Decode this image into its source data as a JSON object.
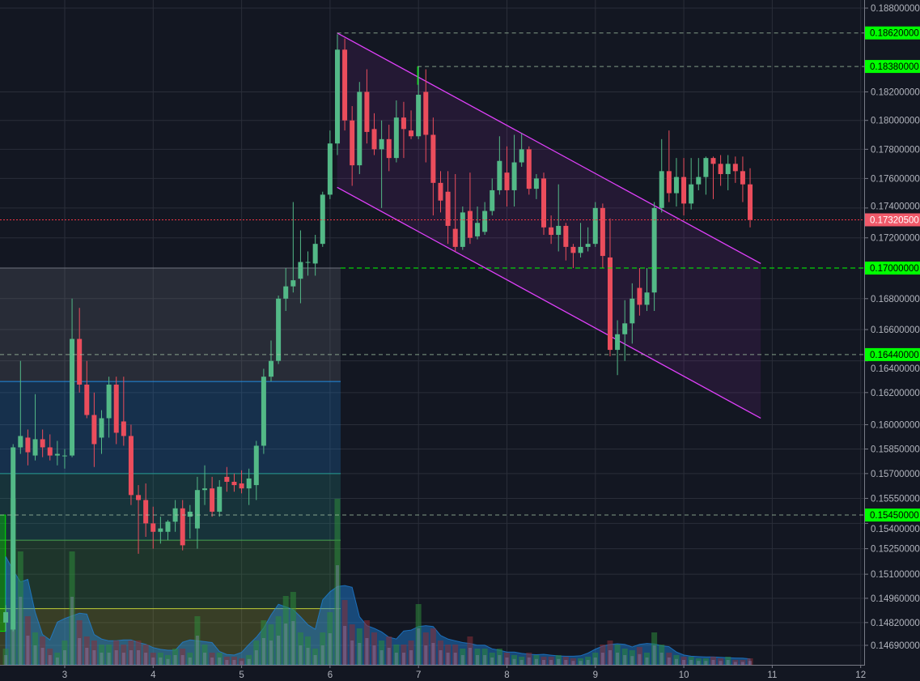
{
  "chart_data": {
    "type": "candlestick",
    "interval_hours": 2,
    "first_candle_day": 2.333,
    "colors": {
      "background": "#131722",
      "grid": "#2a2e39",
      "up": "#53b987",
      "down": "#eb4d5c",
      "channel": "#e040fb",
      "level_green": "#00ff00",
      "current_price": "#f05a6a",
      "volume_area": "#1e88e5"
    },
    "x_axis": {
      "tick_days": [
        3,
        4,
        5,
        6,
        7,
        8,
        9,
        10,
        11,
        12
      ],
      "ticks": [
        "3",
        "4",
        "5",
        "6",
        "7",
        "8",
        "9",
        "10",
        "11",
        "12"
      ]
    },
    "y_axis": {
      "scale": "log",
      "side": "right",
      "ticks": [
        "0.18800000",
        "0.18200000",
        "0.18000000",
        "0.17800000",
        "0.17600000",
        "0.17400000",
        "0.17200000",
        "0.16800000",
        "0.16600000",
        "0.16400000",
        "0.16200000",
        "0.16000000",
        "0.15850000",
        "0.15700000",
        "0.15550000",
        "0.15400000",
        "0.15250000",
        "0.15100000",
        "0.14960000",
        "0.14820000",
        "0.14690000"
      ]
    },
    "candles": [
      [
        0.1482,
        0.1492,
        0.1477,
        0.1488
      ],
      [
        0.1478,
        0.1588,
        0.1477,
        0.1586
      ],
      [
        0.1586,
        0.164,
        0.1582,
        0.1593
      ],
      [
        0.1592,
        0.1597,
        0.1575,
        0.1583
      ],
      [
        0.1581,
        0.1619,
        0.1578,
        0.1591
      ],
      [
        0.1591,
        0.1597,
        0.158,
        0.1586
      ],
      [
        0.1586,
        0.1594,
        0.1578,
        0.1581
      ],
      [
        0.1581,
        0.159,
        0.1575,
        0.1582
      ],
      [
        0.1581,
        0.1585,
        0.1573,
        0.1581
      ],
      [
        0.1581,
        0.168,
        0.158,
        0.1654
      ],
      [
        0.1654,
        0.1674,
        0.162,
        0.1625
      ],
      [
        0.1625,
        0.164,
        0.1604,
        0.1606
      ],
      [
        0.1606,
        0.162,
        0.1574,
        0.1588
      ],
      [
        0.1592,
        0.1609,
        0.1582,
        0.1604
      ],
      [
        0.1604,
        0.163,
        0.1592,
        0.1625
      ],
      [
        0.1625,
        0.163,
        0.1588,
        0.1595
      ],
      [
        0.1602,
        0.163,
        0.1587,
        0.1593
      ],
      [
        0.1593,
        0.16,
        0.1551,
        0.1557
      ],
      [
        0.1557,
        0.1563,
        0.1522,
        0.1554
      ],
      [
        0.1554,
        0.1564,
        0.1532,
        0.154
      ],
      [
        0.154,
        0.155,
        0.1525,
        0.1535
      ],
      [
        0.1535,
        0.1544,
        0.1528,
        0.1537
      ],
      [
        0.1535,
        0.1542,
        0.153,
        0.1541
      ],
      [
        0.1541,
        0.1554,
        0.1535,
        0.1549
      ],
      [
        0.1549,
        0.1554,
        0.1524,
        0.1527
      ],
      [
        0.1544,
        0.1551,
        0.1531,
        0.1547
      ],
      [
        0.1537,
        0.1568,
        0.1525,
        0.156
      ],
      [
        0.156,
        0.1575,
        0.1551,
        0.1561
      ],
      [
        0.1561,
        0.1568,
        0.1544,
        0.1547
      ],
      [
        0.1547,
        0.1566,
        0.1544,
        0.1562
      ],
      [
        0.1568,
        0.1574,
        0.1559,
        0.1565
      ],
      [
        0.1565,
        0.157,
        0.1559,
        0.1563
      ],
      [
        0.1564,
        0.1572,
        0.1558,
        0.1561
      ],
      [
        0.1561,
        0.1573,
        0.1551,
        0.1567
      ],
      [
        0.1563,
        0.159,
        0.1554,
        0.1587
      ],
      [
        0.1587,
        0.1635,
        0.1582,
        0.163
      ],
      [
        0.163,
        0.1653,
        0.1627,
        0.164
      ],
      [
        0.164,
        0.1682,
        0.1638,
        0.168
      ],
      [
        0.168,
        0.17,
        0.1672,
        0.1688
      ],
      [
        0.1688,
        0.1744,
        0.1684,
        0.1692
      ],
      [
        0.1693,
        0.1725,
        0.1677,
        0.1704
      ],
      [
        0.1704,
        0.1711,
        0.1695,
        0.1704
      ],
      [
        0.1703,
        0.1722,
        0.1695,
        0.1716
      ],
      [
        0.1716,
        0.1751,
        0.1714,
        0.1749
      ],
      [
        0.1749,
        0.1793,
        0.1746,
        0.1784
      ],
      [
        0.1784,
        0.1861,
        0.1776,
        0.185
      ],
      [
        0.185,
        0.1858,
        0.1793,
        0.18
      ],
      [
        0.18,
        0.181,
        0.1755,
        0.1769
      ],
      [
        0.1769,
        0.1827,
        0.1763,
        0.182
      ],
      [
        0.182,
        0.1836,
        0.1784,
        0.1792
      ],
      [
        0.1794,
        0.1805,
        0.1776,
        0.178
      ],
      [
        0.178,
        0.18,
        0.174,
        0.1787
      ],
      [
        0.1787,
        0.1797,
        0.1765,
        0.1774
      ],
      [
        0.1774,
        0.1814,
        0.1771,
        0.1802
      ],
      [
        0.1802,
        0.1813,
        0.1774,
        0.1794
      ],
      [
        0.1793,
        0.1807,
        0.1787,
        0.1789
      ],
      [
        0.1789,
        0.1838,
        0.1787,
        0.1818
      ],
      [
        0.182,
        0.1836,
        0.1771,
        0.179
      ],
      [
        0.179,
        0.1802,
        0.1735,
        0.1757
      ],
      [
        0.1757,
        0.1765,
        0.1737,
        0.1745
      ],
      [
        0.1751,
        0.1765,
        0.1716,
        0.1728
      ],
      [
        0.1726,
        0.1763,
        0.1711,
        0.1714
      ],
      [
        0.1714,
        0.1741,
        0.1712,
        0.1737
      ],
      [
        0.1738,
        0.1764,
        0.1716,
        0.172
      ],
      [
        0.1721,
        0.1741,
        0.1719,
        0.173
      ],
      [
        0.1724,
        0.1744,
        0.1722,
        0.1738
      ],
      [
        0.1738,
        0.176,
        0.1735,
        0.1752
      ],
      [
        0.1752,
        0.1789,
        0.1749,
        0.1772
      ],
      [
        0.1764,
        0.1782,
        0.1741,
        0.1752
      ],
      [
        0.1752,
        0.179,
        0.1741,
        0.1771
      ],
      [
        0.1771,
        0.1791,
        0.1768,
        0.178
      ],
      [
        0.178,
        0.1782,
        0.1749,
        0.1753
      ],
      [
        0.1753,
        0.1763,
        0.1746,
        0.176
      ],
      [
        0.176,
        0.1764,
        0.1722,
        0.1727
      ],
      [
        0.1727,
        0.1735,
        0.1716,
        0.1722
      ],
      [
        0.1722,
        0.1756,
        0.1711,
        0.1728
      ],
      [
        0.1728,
        0.173,
        0.1705,
        0.1714
      ],
      [
        0.1714,
        0.1716,
        0.17,
        0.171
      ],
      [
        0.171,
        0.173,
        0.1707,
        0.1714
      ],
      [
        0.1714,
        0.1727,
        0.1711,
        0.1716
      ],
      [
        0.1716,
        0.1744,
        0.1714,
        0.174
      ],
      [
        0.174,
        0.1743,
        0.17,
        0.1708
      ],
      [
        0.1707,
        0.1733,
        0.1643,
        0.1647
      ],
      [
        0.1647,
        0.1666,
        0.1631,
        0.1657
      ],
      [
        0.1657,
        0.1679,
        0.164,
        0.1664
      ],
      [
        0.1664,
        0.169,
        0.1651,
        0.168
      ],
      [
        0.1687,
        0.17,
        0.1669,
        0.1676
      ],
      [
        0.1676,
        0.17,
        0.1672,
        0.1684
      ],
      [
        0.1684,
        0.1744,
        0.1672,
        0.174
      ],
      [
        0.174,
        0.1787,
        0.1737,
        0.1765
      ],
      [
        0.1765,
        0.1793,
        0.1744,
        0.175
      ],
      [
        0.175,
        0.1774,
        0.1741,
        0.1761
      ],
      [
        0.1761,
        0.1774,
        0.1735,
        0.1743
      ],
      [
        0.1743,
        0.1774,
        0.1739,
        0.1756
      ],
      [
        0.1756,
        0.1774,
        0.1752,
        0.1761
      ],
      [
        0.1761,
        0.1775,
        0.1749,
        0.1774
      ],
      [
        0.1774,
        0.1775,
        0.1746,
        0.177
      ],
      [
        0.177,
        0.1776,
        0.1755,
        0.1763
      ],
      [
        0.1763,
        0.1776,
        0.1752,
        0.177
      ],
      [
        0.177,
        0.1775,
        0.1757,
        0.1765
      ],
      [
        0.1765,
        0.1775,
        0.1744,
        0.1756
      ],
      [
        0.1756,
        0.1767,
        0.1727,
        0.173205
      ]
    ],
    "volume": [
      20,
      205,
      140,
      60,
      40,
      35,
      20,
      15,
      30,
      140,
      55,
      35,
      30,
      25,
      25,
      30,
      25,
      30,
      30,
      25,
      15,
      15,
      12,
      20,
      20,
      15,
      60,
      25,
      15,
      15,
      10,
      10,
      8,
      12,
      30,
      55,
      50,
      60,
      85,
      90,
      40,
      35,
      20,
      40,
      65,
      205,
      80,
      50,
      45,
      55,
      40,
      30,
      35,
      25,
      25,
      30,
      75,
      40,
      45,
      30,
      25,
      25,
      20,
      35,
      20,
      20,
      15,
      20,
      15,
      12,
      10,
      15,
      12,
      10,
      10,
      12,
      10,
      8,
      8,
      10,
      15,
      25,
      30,
      25,
      20,
      18,
      22,
      15,
      40,
      25,
      15,
      12,
      10,
      10,
      8,
      8,
      10,
      8,
      10,
      6,
      6,
      8
    ],
    "zones": [
      {
        "from": 0.17,
        "to": 0.1627,
        "color": "#787b86"
      },
      {
        "from": 0.1627,
        "to": 0.157,
        "color": "#2196f3"
      },
      {
        "from": 0.157,
        "to": 0.153,
        "color": "#26a69a"
      },
      {
        "from": 0.153,
        "to": 0.149,
        "color": "#4caf50"
      },
      {
        "from": 0.149,
        "to": 0.145,
        "color": "#cddc39"
      }
    ],
    "zones_end_day": 6.12,
    "position_box": {
      "top": 0.1545,
      "bottom": 0.1477,
      "start_day": 2.2,
      "end_day": 2.33,
      "color": "#00e600"
    },
    "channel": {
      "upper": [
        [
          6.08,
          0.1862
        ],
        [
          10.87,
          0.1703
        ]
      ],
      "lower": [
        [
          6.08,
          0.1754
        ],
        [
          10.87,
          0.1604
        ]
      ]
    },
    "levels": [
      {
        "label": "0.18620000",
        "start_day": 6.08
      },
      {
        "label": "0.18380000",
        "start_day": 6.99
      },
      {
        "label": "0.17000000",
        "start_day": 6.12
      },
      {
        "label": "0.16440000",
        "start_day": 2.2
      },
      {
        "label": "0.15450000",
        "start_day": 2.2
      }
    ],
    "current_price": {
      "label": "0.17320500"
    }
  }
}
